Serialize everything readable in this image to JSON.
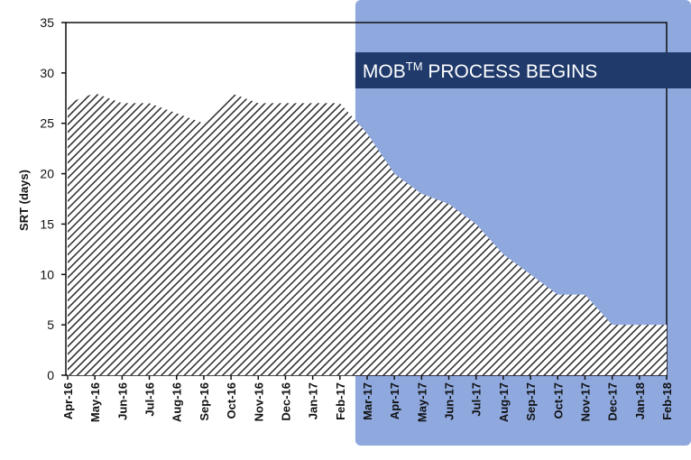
{
  "chart_data": {
    "type": "area",
    "title": "",
    "xlabel": "",
    "ylabel": "SRT (days)",
    "ylim": [
      0,
      35
    ],
    "yticks": [
      0,
      5,
      10,
      15,
      20,
      25,
      30,
      35
    ],
    "grid": false,
    "categories": [
      "Apr-16",
      "May-16",
      "Jun-16",
      "Jul-16",
      "Aug-16",
      "Sep-16",
      "Oct-16",
      "Nov-16",
      "Dec-16",
      "Jan-17",
      "Feb-17",
      "Mar-17",
      "Apr-17",
      "May-17",
      "Jun-17",
      "Jul-17",
      "Aug-17",
      "Sep-17",
      "Oct-17",
      "Nov-17",
      "Dec-17",
      "Jan-18",
      "Feb-18"
    ],
    "series": [
      {
        "values": [
          27,
          28,
          27,
          27,
          26,
          25,
          28,
          27,
          27,
          27,
          27,
          24,
          20,
          18,
          17,
          15,
          12,
          10,
          8,
          8,
          5,
          5,
          5
        ]
      }
    ],
    "fill_pattern": "diagonal-hatch",
    "annotation": {
      "text_main": "MOB",
      "text_sup": "TM",
      "text_rest": " PROCESS BEGINS",
      "start_category": "Mar-17",
      "shaded_region_color": "#8fa9df",
      "banner_color": "#1f3a6b"
    }
  }
}
